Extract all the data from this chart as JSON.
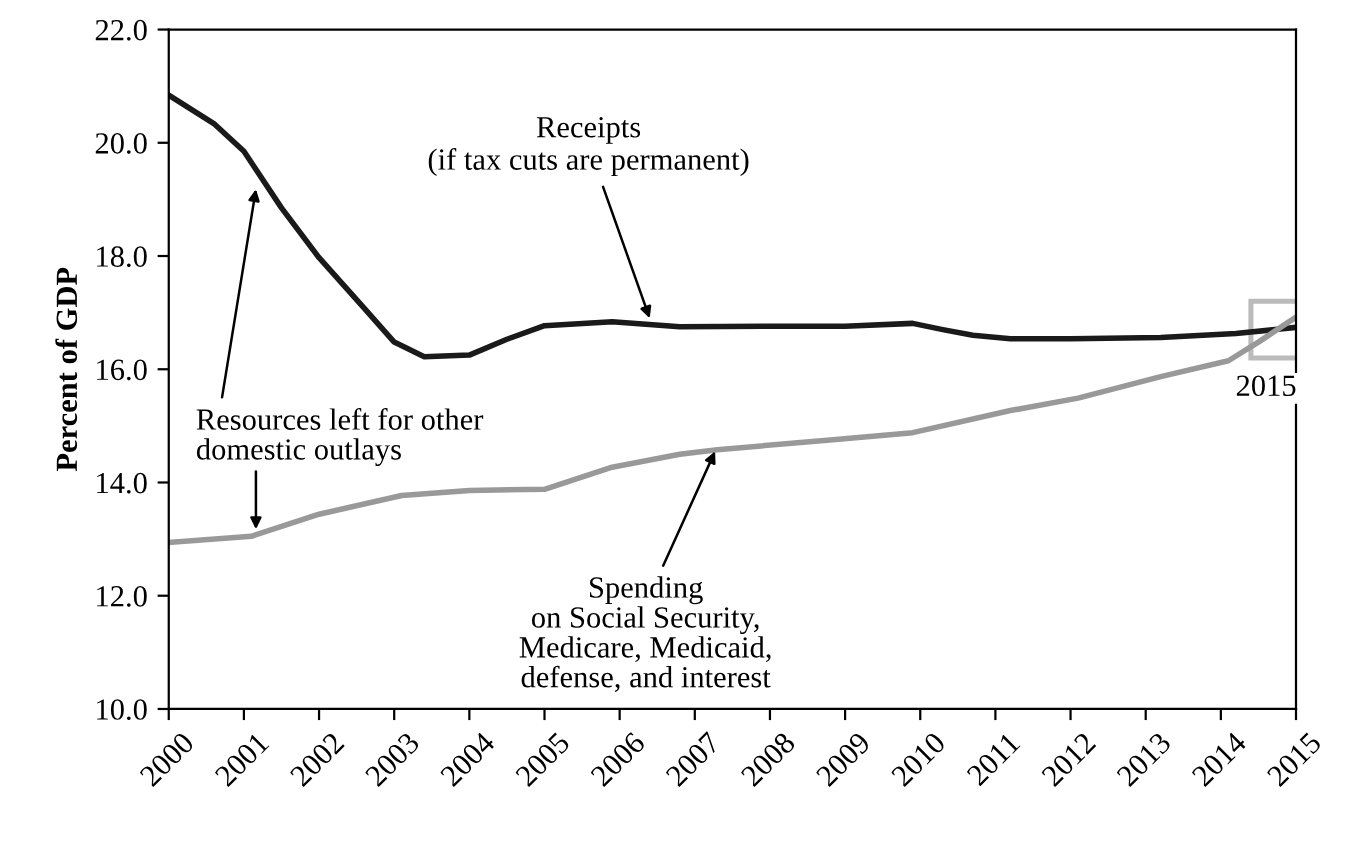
{
  "chart_data": {
    "type": "line",
    "ylabel": "Percent of GDP",
    "xlim": [
      2000,
      2015
    ],
    "xticks": [
      2000,
      2001,
      2002,
      2003,
      2004,
      2005,
      2006,
      2007,
      2008,
      2009,
      2010,
      2011,
      2012,
      2013,
      2014,
      2015
    ],
    "ylim": [
      10,
      22
    ],
    "yticks": [
      {
        "value": 10,
        "label": "10.0"
      },
      {
        "value": 12,
        "label": "12.0"
      },
      {
        "value": 14,
        "label": "14.0"
      },
      {
        "value": 16,
        "label": "16.0"
      },
      {
        "value": 18,
        "label": "18.0"
      },
      {
        "value": 20,
        "label": "20.0"
      },
      {
        "value": 22,
        "label": "22.0"
      }
    ],
    "grid": false,
    "marker": "none",
    "line_style": "solid",
    "series": [
      {
        "color": "#1a1a1a",
        "x": [
          2000,
          2000.6,
          2001,
          2001.5,
          2002,
          2002.6,
          2003,
          2003.4,
          2004,
          2004.5,
          2005,
          2005.9,
          2006.8,
          2008,
          2009,
          2009.9,
          2010.3,
          2010.7,
          2011.2,
          2012,
          2013.2,
          2014.2,
          2015
        ],
        "values": [
          20.84,
          20.34,
          19.85,
          18.85,
          17.97,
          17.08,
          16.48,
          16.22,
          16.25,
          16.53,
          16.77,
          16.84,
          16.75,
          16.76,
          16.76,
          16.81,
          16.7,
          16.6,
          16.54,
          16.54,
          16.56,
          16.63,
          16.74
        ]
      },
      {
        "color": "#999999",
        "x": [
          2000,
          2001.1,
          2002,
          2003.1,
          2004,
          2005,
          2005.9,
          2006.8,
          2007.3,
          2008.8,
          2009.9,
          2011.2,
          2012.1,
          2013.2,
          2014.1,
          2014.5,
          2015
        ],
        "values": [
          12.94,
          13.05,
          13.44,
          13.77,
          13.86,
          13.88,
          14.27,
          14.5,
          14.58,
          14.75,
          14.88,
          15.27,
          15.49,
          15.87,
          16.15,
          16.48,
          16.92
        ]
      }
    ],
    "annotations": [
      {
        "text": "Receipts\n(if tax cuts are permanent)",
        "x": 2006.4,
        "y": 16.9
      },
      {
        "text": "Resources left for other\ndomestic outlays",
        "x": 2001.16,
        "y": 19.18
      },
      {
        "text": "Spending\non Social Security,\nMedicare, Medicaid,\ndefense, and interest",
        "x": 2007.27,
        "y": 14.55
      },
      {
        "text": "2015",
        "x": 2014.75,
        "y": 16.7
      }
    ]
  }
}
